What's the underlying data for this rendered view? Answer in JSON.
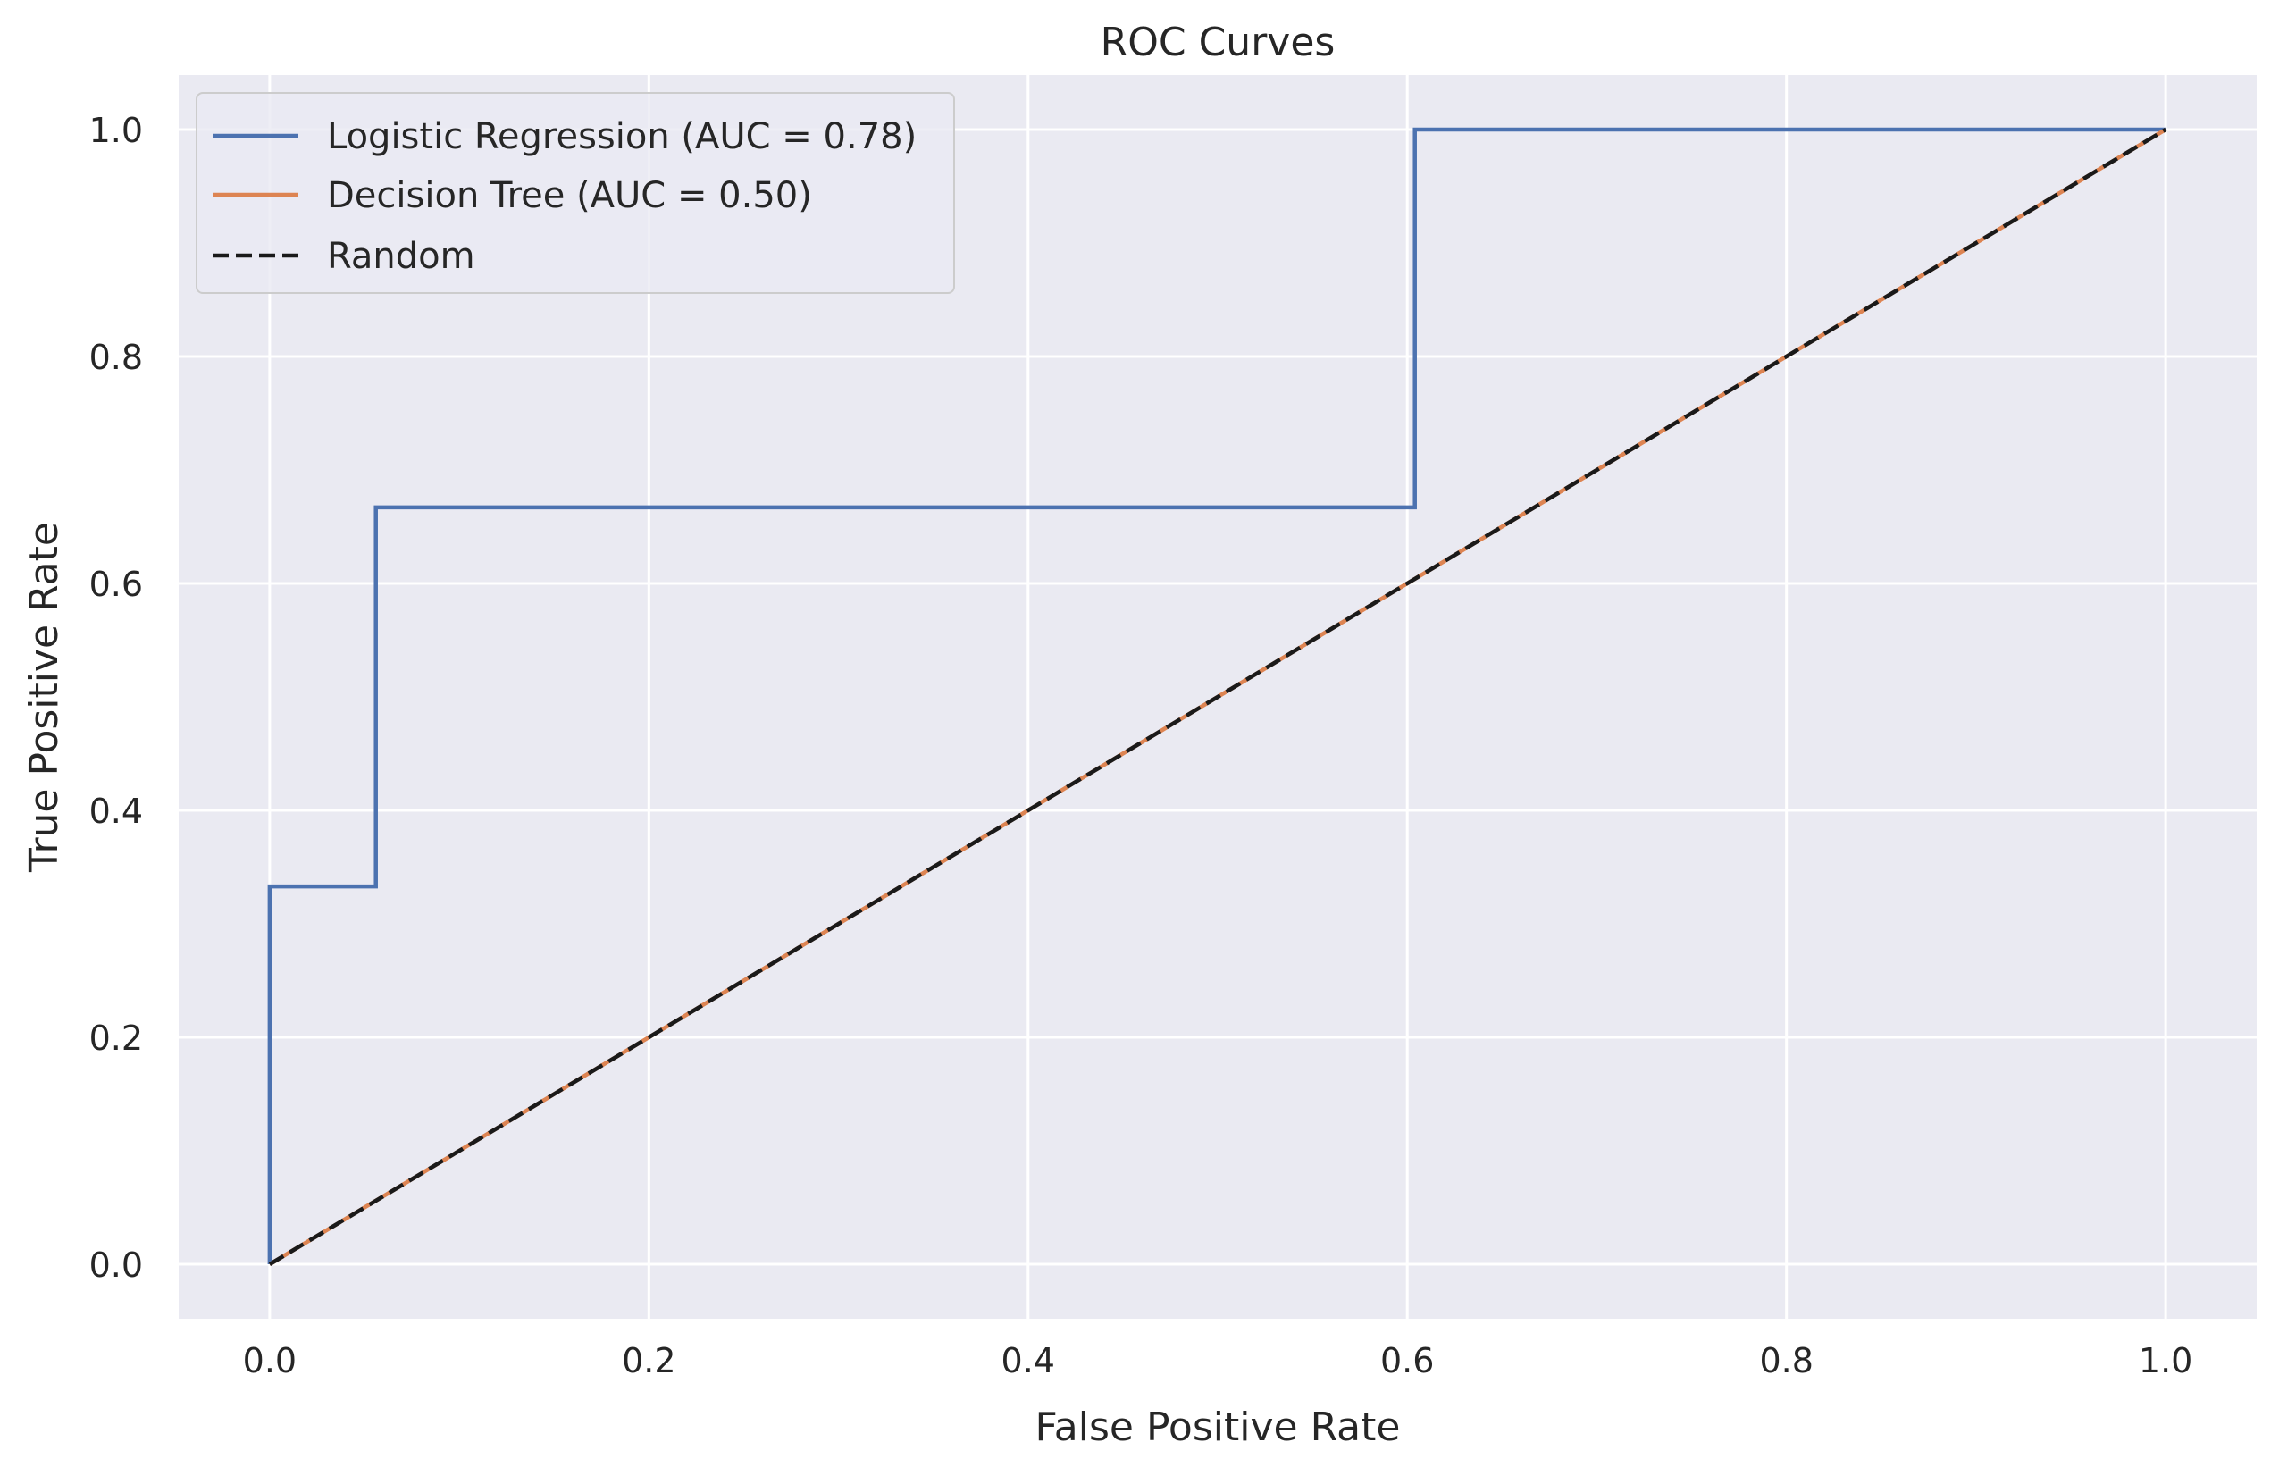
{
  "chart_data": {
    "type": "line",
    "title": "ROC Curves",
    "xlabel": "False Positive Rate",
    "ylabel": "True Positive Rate",
    "xlim": [
      -0.048,
      1.048
    ],
    "ylim": [
      -0.048,
      1.048
    ],
    "grid": true,
    "legend_position": "top-left",
    "xticks": [
      0.0,
      0.2,
      0.4,
      0.6,
      0.8,
      1.0
    ],
    "yticks": [
      0.0,
      0.2,
      0.4,
      0.6,
      0.8,
      1.0
    ],
    "xtick_labels": [
      "0.0",
      "0.2",
      "0.4",
      "0.6",
      "0.8",
      "1.0"
    ],
    "ytick_labels": [
      "0.0",
      "0.2",
      "0.4",
      "0.6",
      "0.8",
      "1.0"
    ],
    "series": [
      {
        "name": "Logistic Regression (AUC = 0.78)",
        "color": "#4c72b0",
        "style": "solid",
        "x": [
          0.0,
          0.0,
          0.056,
          0.056,
          0.604,
          0.604,
          1.0
        ],
        "y": [
          0.0,
          0.333,
          0.333,
          0.667,
          0.667,
          1.0,
          1.0
        ]
      },
      {
        "name": "Decision Tree (AUC = 0.50)",
        "color": "#dd8452",
        "style": "solid",
        "x": [
          0.0,
          1.0
        ],
        "y": [
          0.0,
          1.0
        ]
      },
      {
        "name": "Random",
        "color": "#1a1a1a",
        "style": "dashed",
        "x": [
          0.0,
          1.0
        ],
        "y": [
          0.0,
          1.0
        ]
      }
    ],
    "colors": {
      "plot_background": "#eaeaf2",
      "grid": "#ffffff",
      "text": "#262626"
    }
  }
}
